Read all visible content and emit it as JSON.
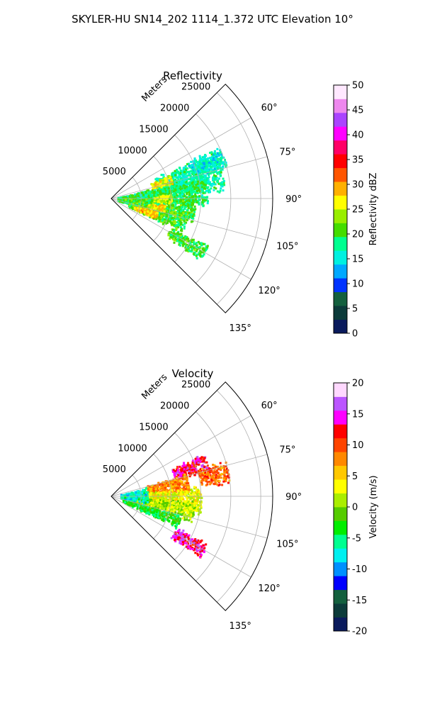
{
  "suptitle": "SKYLER-HU  SN14_202  1114_1.372 UTC Elevation 10°",
  "chart_data": [
    {
      "type": "heatmap",
      "projection": "polar-sector",
      "title": "Reflectivity",
      "radial_label": "Meters",
      "radial_ticks": [
        5000,
        10000,
        15000,
        20000,
        25000
      ],
      "rmax": 27000,
      "angle_ticks": [
        "60°",
        "75°",
        "90°",
        "105°",
        "120°",
        "135°"
      ],
      "angle_range_deg": [
        45,
        135
      ],
      "colorbar": {
        "label": "Reflectivity dBZ",
        "vmin": 0,
        "vmax": 50,
        "ticks": [
          0,
          5,
          10,
          15,
          20,
          25,
          30,
          35,
          40,
          45,
          50
        ],
        "colormap": [
          "#0a1a5c",
          "#0c3b3a",
          "#14603e",
          "#0033ff",
          "#00a8ff",
          "#00f0e0",
          "#00ff90",
          "#44dd00",
          "#99ee00",
          "#ffff00",
          "#ffb000",
          "#ff5500",
          "#ff0000",
          "#ff0066",
          "#ff00ff",
          "#aa44ff",
          "#ee88ee",
          "#ffe8ff"
        ]
      },
      "echoes": [
        {
          "az": 75,
          "r": [
            8000,
            19000
          ],
          "spread": 12,
          "value": 17
        },
        {
          "az": 70,
          "r": [
            14000,
            20000
          ],
          "spread": 6,
          "value": 16
        },
        {
          "az": 85,
          "r": [
            1000,
            16000
          ],
          "spread": 10,
          "value": 19
        },
        {
          "az": 97,
          "r": [
            1000,
            14000
          ],
          "spread": 10,
          "value": 20
        },
        {
          "az": 108,
          "r": [
            3000,
            13000
          ],
          "spread": 8,
          "value": 21
        },
        {
          "az": 120,
          "r": [
            11000,
            18000
          ],
          "spread": 5,
          "value": 20
        },
        {
          "az": 72,
          "r": [
            7000,
            10500
          ],
          "spread": 5,
          "value": 26
        },
        {
          "az": 90,
          "r": [
            7000,
            10000
          ],
          "spread": 5,
          "value": 25
        },
        {
          "az": 100,
          "r": [
            6000,
            9000
          ],
          "spread": 4,
          "value": 27
        },
        {
          "az": 110,
          "r": [
            4000,
            8000
          ],
          "spread": 5,
          "value": 28
        }
      ]
    },
    {
      "type": "heatmap",
      "projection": "polar-sector",
      "title": "Velocity",
      "radial_label": "Meters",
      "radial_ticks": [
        5000,
        10000,
        15000,
        20000,
        25000
      ],
      "rmax": 27000,
      "angle_ticks": [
        "60°",
        "75°",
        "90°",
        "105°",
        "120°",
        "135°"
      ],
      "angle_range_deg": [
        45,
        135
      ],
      "colorbar": {
        "label": "Velocity (m/s)",
        "vmin": -20,
        "vmax": 20,
        "ticks": [
          -20,
          -15,
          -10,
          -5,
          0,
          5,
          10,
          15,
          20
        ],
        "colormap": [
          "#0a1a5c",
          "#0c3b3a",
          "#14603e",
          "#0000ff",
          "#0090ff",
          "#00f0f0",
          "#00ff90",
          "#00ee00",
          "#55cc00",
          "#aaee00",
          "#ffff00",
          "#ffc800",
          "#ff8800",
          "#ff4400",
          "#ff0000",
          "#ff00ff",
          "#bb55ff",
          "#ffd8ff"
        ]
      },
      "echoes": [
        {
          "az": 70,
          "r": [
            11000,
            17000
          ],
          "spread": 6,
          "value": 13
        },
        {
          "az": 78,
          "r": [
            15000,
            20000
          ],
          "spread": 6,
          "value": 9
        },
        {
          "az": 80,
          "r": [
            6000,
            13000
          ],
          "spread": 8,
          "value": 8
        },
        {
          "az": 92,
          "r": [
            6000,
            15000
          ],
          "spread": 10,
          "value": 3
        },
        {
          "az": 100,
          "r": [
            4000,
            14000
          ],
          "spread": 8,
          "value": 1
        },
        {
          "az": 88,
          "r": [
            1500,
            6000
          ],
          "spread": 14,
          "value": -7
        },
        {
          "az": 110,
          "r": [
            2000,
            12000
          ],
          "spread": 6,
          "value": -3
        },
        {
          "az": 120,
          "r": [
            12000,
            18000
          ],
          "spread": 5,
          "value": 14
        }
      ]
    }
  ]
}
